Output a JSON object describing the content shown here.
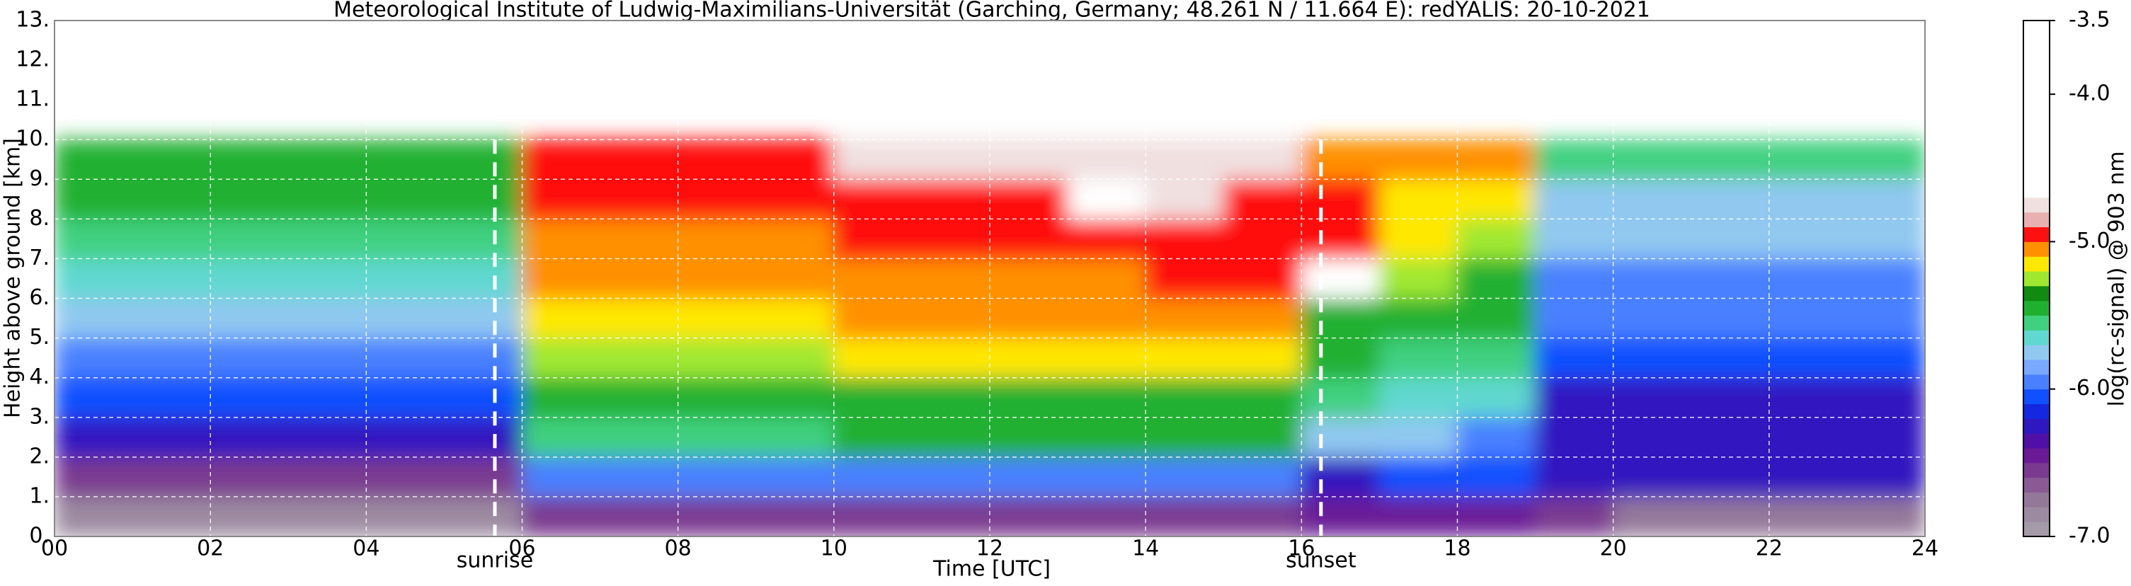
{
  "chart_data": {
    "type": "heatmap",
    "title": "Meteorological Institute of Ludwig-Maximilians-Universität (Garching, Germany; 48.261 N / 11.664 E):    redYALIS: 20-10-2021",
    "xlabel": "Time [UTC]",
    "ylabel": "Height above ground [km]",
    "colorbar_label": "log(rc-signal) @ 903 nm",
    "xlim": [
      0,
      24
    ],
    "xticks": [
      {
        "value": 0,
        "label": "00"
      },
      {
        "value": 2,
        "label": "02"
      },
      {
        "value": 4,
        "label": "04"
      },
      {
        "value": 6,
        "label": "06"
      },
      {
        "value": 8,
        "label": "08"
      },
      {
        "value": 10,
        "label": "10"
      },
      {
        "value": 12,
        "label": "12"
      },
      {
        "value": 14,
        "label": "14"
      },
      {
        "value": 16,
        "label": "16"
      },
      {
        "value": 18,
        "label": "18"
      },
      {
        "value": 20,
        "label": "20"
      },
      {
        "value": 22,
        "label": "22"
      },
      {
        "value": 24,
        "label": "24"
      }
    ],
    "ylim": [
      0,
      13
    ],
    "yticks": [
      {
        "value": 0,
        "label": "0."
      },
      {
        "value": 1,
        "label": "1."
      },
      {
        "value": 2,
        "label": "2."
      },
      {
        "value": 3,
        "label": "3."
      },
      {
        "value": 4,
        "label": "4."
      },
      {
        "value": 5,
        "label": "5."
      },
      {
        "value": 6,
        "label": "6."
      },
      {
        "value": 7,
        "label": "7."
      },
      {
        "value": 8,
        "label": "8."
      },
      {
        "value": 9,
        "label": "9."
      },
      {
        "value": 10,
        "label": "10."
      },
      {
        "value": 11,
        "label": "11."
      },
      {
        "value": 12,
        "label": "12."
      },
      {
        "value": 13,
        "label": "13."
      }
    ],
    "clim": [
      -7.0,
      -3.5
    ],
    "cticks": [
      {
        "value": -7.0,
        "label": "-7.0"
      },
      {
        "value": -6.0,
        "label": "-6.0"
      },
      {
        "value": -5.0,
        "label": "-5.0"
      },
      {
        "value": -4.0,
        "label": "-4.0"
      },
      -3.5
    ],
    "grid": true,
    "grid_color": "#ffffff",
    "colormap": [
      "#a49aa8",
      "#9c8aa0",
      "#94789a",
      "#8a5a94",
      "#7a3a90",
      "#6a1a96",
      "#5010a8",
      "#3018c0",
      "#1428e0",
      "#1050ff",
      "#4a80ff",
      "#78a8ff",
      "#90c8f0",
      "#60d8d0",
      "#40d080",
      "#20b030",
      "#108a10",
      "#a0e830",
      "#ffe800",
      "#ff9000",
      "#ff1010",
      "#e8b0b0",
      "#f0e0e0",
      "#ffffff",
      "#ffffff",
      "#ffffff",
      "#ffffff",
      "#ffffff",
      "#ffffff",
      "#ffffff",
      "#ffffff",
      "#ffffff",
      "#ffffff",
      "#ffffff",
      "#ffffff"
    ],
    "time_edges": [
      0,
      1,
      2,
      3,
      4,
      5,
      6,
      7,
      8,
      9,
      10,
      11,
      12,
      13,
      14,
      15,
      16,
      17,
      18,
      19,
      20,
      21,
      22,
      23,
      24
    ],
    "height_edges": [
      0,
      1,
      2,
      3,
      4,
      5,
      6,
      7,
      8,
      9,
      10
    ],
    "z": [
      [
        -6.85,
        -6.85,
        -6.85,
        -6.85,
        -6.85,
        -6.85,
        -6.55,
        -6.55,
        -6.55,
        -6.55,
        -6.55,
        -6.55,
        -6.55,
        -6.55,
        -6.55,
        -6.55,
        -6.4,
        -6.4,
        -6.45,
        -6.6,
        -6.7,
        -6.75,
        -6.75,
        -6.75
      ],
      [
        -6.6,
        -6.6,
        -6.6,
        -6.6,
        -6.6,
        -6.6,
        -5.95,
        -5.95,
        -5.95,
        -5.95,
        -5.9,
        -5.9,
        -5.9,
        -5.9,
        -5.9,
        -5.9,
        -6.2,
        -6.1,
        -6.1,
        -6.3,
        -6.3,
        -6.3,
        -6.3,
        -6.3
      ],
      [
        -6.3,
        -6.3,
        -6.3,
        -6.3,
        -6.3,
        -6.3,
        -5.6,
        -5.6,
        -5.6,
        -5.6,
        -5.5,
        -5.5,
        -5.5,
        -5.5,
        -5.5,
        -5.5,
        -5.8,
        -5.8,
        -5.9,
        -6.2,
        -6.2,
        -6.2,
        -6.2,
        -6.2
      ],
      [
        -6.1,
        -6.1,
        -6.1,
        -6.1,
        -6.1,
        -6.1,
        -5.5,
        -5.5,
        -5.5,
        -5.5,
        -5.4,
        -5.4,
        -5.4,
        -5.4,
        -5.4,
        -5.4,
        -5.6,
        -5.65,
        -5.65,
        -6.2,
        -6.2,
        -6.2,
        -6.2,
        -6.2
      ],
      [
        -5.9,
        -5.9,
        -5.9,
        -5.9,
        -5.9,
        -5.9,
        -5.3,
        -5.3,
        -5.3,
        -5.3,
        -5.2,
        -5.2,
        -5.2,
        -5.2,
        -5.2,
        -5.2,
        -5.5,
        -5.6,
        -5.6,
        -6.1,
        -6.1,
        -6.1,
        -6.1,
        -6.1
      ],
      [
        -5.75,
        -5.75,
        -5.75,
        -5.75,
        -5.75,
        -5.75,
        -5.2,
        -5.2,
        -5.2,
        -5.2,
        -5.1,
        -5.1,
        -5.1,
        -5.1,
        -5.1,
        -5.1,
        -5.45,
        -5.5,
        -5.5,
        -6.0,
        -6.0,
        -6.0,
        -6.0,
        -6.0
      ],
      [
        -5.65,
        -5.65,
        -5.65,
        -5.65,
        -5.65,
        -5.65,
        -5.1,
        -5.1,
        -5.1,
        -5.1,
        -5.05,
        -5.05,
        -5.05,
        -5.05,
        -4.9,
        -5.0,
        -4.5,
        -5.3,
        -5.4,
        -5.9,
        -5.9,
        -5.9,
        -5.9,
        -5.9
      ],
      [
        -5.55,
        -5.55,
        -5.55,
        -5.55,
        -5.55,
        -5.55,
        -5.05,
        -5.05,
        -5.05,
        -5.05,
        -5.0,
        -5.0,
        -5.0,
        -5.0,
        -5.0,
        -5.0,
        -4.9,
        -5.2,
        -5.3,
        -5.8,
        -5.8,
        -5.8,
        -5.8,
        -5.8
      ],
      [
        -5.45,
        -5.45,
        -5.45,
        -5.45,
        -5.45,
        -5.45,
        -5.0,
        -5.0,
        -5.0,
        -5.0,
        -5.0,
        -5.0,
        -5.0,
        -4.6,
        -4.8,
        -5.0,
        -5.0,
        -5.15,
        -5.2,
        -5.7,
        -5.7,
        -5.7,
        -5.7,
        -5.7
      ],
      [
        -5.4,
        -5.4,
        -5.4,
        -5.4,
        -5.4,
        -5.4,
        -5.0,
        -5.0,
        -5.0,
        -5.0,
        -4.8,
        -4.8,
        -4.8,
        -4.8,
        -4.8,
        -4.8,
        -5.1,
        -5.1,
        -5.1,
        -5.6,
        -5.6,
        -5.6,
        -5.6,
        -5.6
      ]
    ],
    "annotations": [
      {
        "text": "sunrise",
        "x": 5.65
      },
      {
        "text": "sunset",
        "x": 16.25
      }
    ]
  }
}
